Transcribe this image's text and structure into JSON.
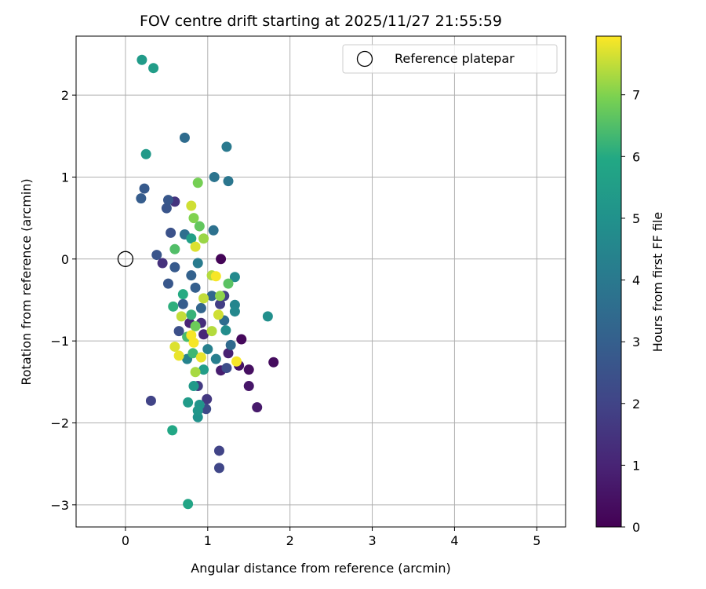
{
  "chart_data": {
    "type": "scatter",
    "title": "FOV centre drift starting at 2025/11/27 21:55:59",
    "xlabel": "Angular distance from reference (arcmin)",
    "ylabel": "Rotation from reference (arcmin)",
    "xlim": [
      -0.6,
      5.35
    ],
    "ylim": [
      -3.27,
      2.72
    ],
    "xticks": [
      0,
      1,
      2,
      3,
      4,
      5
    ],
    "yticks": [
      -3,
      -2,
      -1,
      0,
      1,
      2
    ],
    "xtick_labels": [
      "0",
      "1",
      "2",
      "3",
      "4",
      "5"
    ],
    "ytick_labels": [
      "−3",
      "−2",
      "−1",
      "0",
      "1",
      "2"
    ],
    "grid": true,
    "legend": {
      "position": "top-right",
      "entries": [
        "Reference platepar"
      ]
    },
    "reference_point": {
      "x": 0,
      "y": 0
    },
    "colorbar": {
      "label": "Hours from first FF file",
      "colormap": "viridis",
      "range": [
        0,
        7.95
      ],
      "ticks": [
        0,
        1,
        2,
        3,
        4,
        5,
        6,
        7
      ],
      "tick_labels": [
        "0",
        "1",
        "2",
        "3",
        "4",
        "5",
        "6",
        "7"
      ]
    },
    "series": [
      {
        "points": [
          [
            1.16,
            0.0,
            0.1
          ],
          [
            1.41,
            -0.98,
            0.2
          ],
          [
            1.8,
            -1.26,
            0.3
          ],
          [
            1.5,
            -1.35,
            0.4
          ],
          [
            1.38,
            -1.3,
            0.5
          ],
          [
            1.5,
            -1.55,
            0.6
          ],
          [
            1.6,
            -1.81,
            0.7
          ],
          [
            1.16,
            -1.36,
            0.8
          ],
          [
            1.25,
            -1.15,
            0.9
          ],
          [
            0.78,
            -0.78,
            1.0
          ],
          [
            0.95,
            -0.92,
            1.1
          ],
          [
            0.92,
            -0.78,
            1.3
          ],
          [
            0.45,
            -0.05,
            1.4
          ],
          [
            0.6,
            0.7,
            1.5
          ],
          [
            0.99,
            -1.71,
            1.6
          ],
          [
            0.88,
            -1.55,
            1.7
          ],
          [
            1.15,
            -0.55,
            1.8
          ],
          [
            1.2,
            -0.45,
            1.9
          ],
          [
            0.31,
            -1.73,
            2.0
          ],
          [
            1.14,
            -2.34,
            2.0
          ],
          [
            1.14,
            -2.55,
            2.1
          ],
          [
            0.98,
            -1.83,
            2.2
          ],
          [
            1.23,
            -1.33,
            2.3
          ],
          [
            0.65,
            -0.88,
            2.4
          ],
          [
            0.55,
            0.32,
            2.5
          ],
          [
            0.38,
            0.05,
            2.6
          ],
          [
            0.52,
            -0.3,
            2.7
          ],
          [
            0.6,
            -0.1,
            2.8
          ],
          [
            0.7,
            -0.55,
            2.9
          ],
          [
            0.85,
            -0.35,
            3.0
          ],
          [
            0.5,
            0.62,
            2.6
          ],
          [
            0.52,
            0.72,
            2.7
          ],
          [
            0.23,
            0.86,
            2.8
          ],
          [
            0.19,
            0.74,
            2.9
          ],
          [
            0.8,
            -0.2,
            3.1
          ],
          [
            0.92,
            -0.6,
            3.2
          ],
          [
            1.05,
            -0.45,
            3.3
          ],
          [
            1.28,
            -1.05,
            3.4
          ],
          [
            1.2,
            -0.75,
            3.5
          ],
          [
            0.72,
            0.3,
            3.6
          ],
          [
            1.07,
            0.35,
            3.7
          ],
          [
            0.72,
            1.48,
            3.5
          ],
          [
            1.08,
            1.0,
            3.8
          ],
          [
            1.25,
            0.95,
            3.9
          ],
          [
            1.23,
            1.37,
            4.0
          ],
          [
            0.88,
            -0.05,
            4.1
          ],
          [
            1.1,
            -1.22,
            4.2
          ],
          [
            1.0,
            -1.1,
            4.3
          ],
          [
            0.75,
            -1.22,
            4.4
          ],
          [
            1.33,
            -0.56,
            4.5
          ],
          [
            1.33,
            -0.64,
            4.6
          ],
          [
            1.33,
            -0.22,
            4.7
          ],
          [
            1.22,
            -0.87,
            4.8
          ],
          [
            1.73,
            -0.7,
            4.9
          ],
          [
            0.88,
            -1.93,
            5.0
          ],
          [
            0.9,
            -1.78,
            5.1
          ],
          [
            0.88,
            -1.85,
            5.2
          ],
          [
            0.83,
            -1.55,
            5.3
          ],
          [
            0.76,
            -1.75,
            5.4
          ],
          [
            0.95,
            -1.35,
            5.5
          ],
          [
            0.8,
            0.25,
            5.6
          ],
          [
            0.25,
            1.28,
            5.3
          ],
          [
            0.2,
            2.43,
            5.4
          ],
          [
            0.34,
            2.33,
            5.5
          ],
          [
            0.76,
            -2.99,
            5.8
          ],
          [
            0.57,
            -2.09,
            5.9
          ],
          [
            0.7,
            -0.43,
            6.0
          ],
          [
            0.58,
            -0.58,
            6.1
          ],
          [
            0.8,
            -0.68,
            6.2
          ],
          [
            0.82,
            -1.15,
            6.3
          ],
          [
            0.75,
            -0.95,
            6.4
          ],
          [
            0.6,
            0.12,
            6.5
          ],
          [
            1.25,
            -0.3,
            6.6
          ],
          [
            0.9,
            0.4,
            6.7
          ],
          [
            0.85,
            -0.82,
            6.8
          ],
          [
            0.88,
            0.93,
            6.9
          ],
          [
            0.83,
            0.5,
            7.0
          ],
          [
            1.15,
            -0.45,
            7.1
          ],
          [
            0.95,
            0.25,
            7.2
          ],
          [
            0.85,
            -1.38,
            7.3
          ],
          [
            1.05,
            -0.2,
            7.4
          ],
          [
            0.68,
            -0.7,
            7.5
          ],
          [
            0.8,
            0.65,
            7.6
          ],
          [
            0.6,
            -1.07,
            7.7
          ],
          [
            0.65,
            -1.18,
            7.8
          ],
          [
            1.35,
            -1.25,
            7.9
          ],
          [
            0.83,
            -1.02,
            7.9
          ],
          [
            0.92,
            -1.2,
            7.8
          ],
          [
            1.1,
            -0.21,
            7.9
          ],
          [
            0.85,
            0.15,
            7.7
          ],
          [
            1.13,
            -0.68,
            7.6
          ],
          [
            0.95,
            -0.48,
            7.5
          ],
          [
            1.05,
            -0.88,
            7.4
          ],
          [
            0.8,
            -0.93,
            7.9
          ]
        ]
      }
    ]
  }
}
